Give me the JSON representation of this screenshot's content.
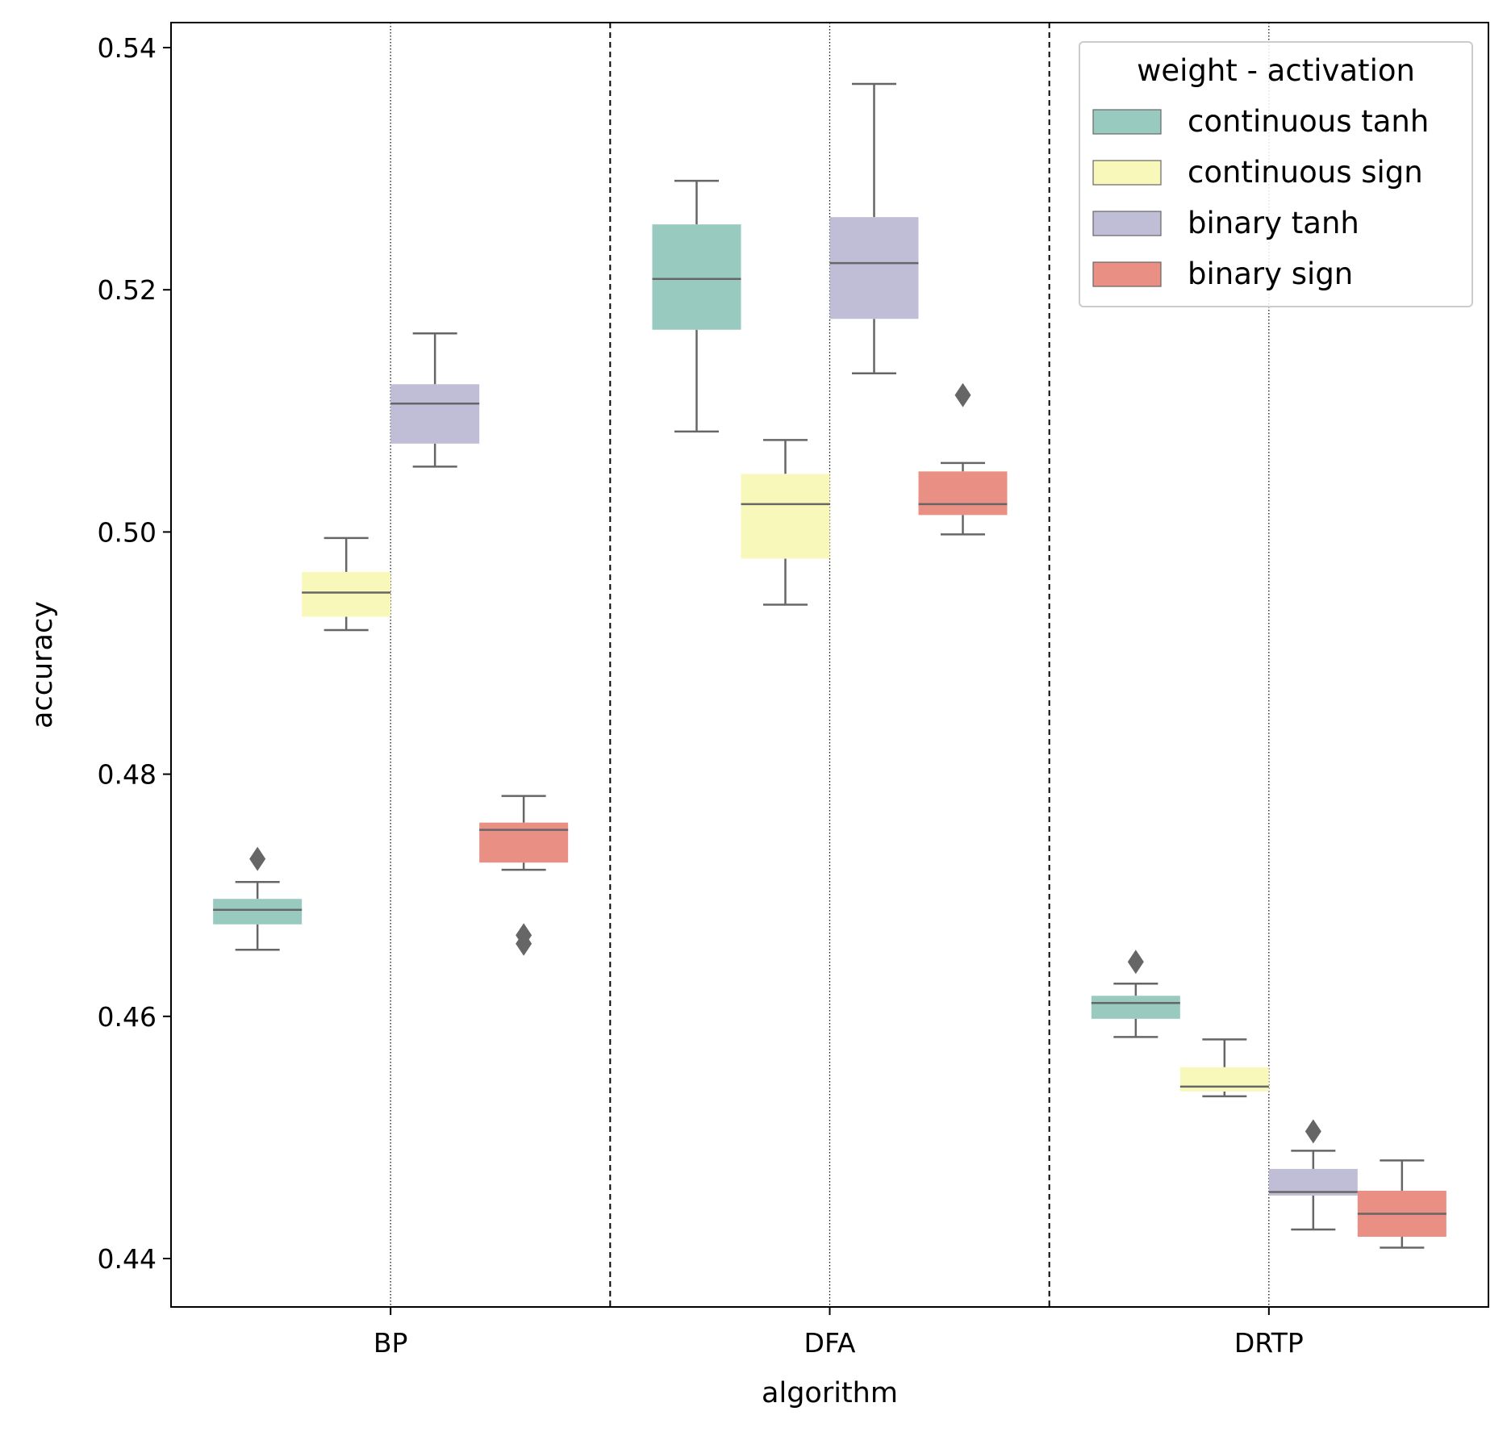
{
  "chart_data": {
    "type": "box",
    "xlabel": "algorithm",
    "ylabel": "accuracy",
    "categories": [
      "BP",
      "DFA",
      "DRTP"
    ],
    "ylim": [
      0.436,
      0.542
    ],
    "yticks": [
      0.44,
      0.46,
      0.48,
      0.5,
      0.52,
      0.54
    ],
    "ytick_labels": [
      "0.44",
      "0.46",
      "0.48",
      "0.50",
      "0.52",
      "0.54"
    ],
    "grid": false,
    "legend": {
      "title": "weight - activation",
      "placement": "top-right"
    },
    "series": [
      {
        "name": "continuous tanh",
        "color": "#99cac0",
        "boxes": [
          {
            "category": "BP",
            "whislo": 0.4655,
            "q1": 0.4676,
            "med": 0.4688,
            "q3": 0.4697,
            "whishi": 0.4711,
            "fliers": [
              0.473
            ]
          },
          {
            "category": "DFA",
            "whislo": 0.5083,
            "q1": 0.5167,
            "med": 0.5209,
            "q3": 0.5254,
            "whishi": 0.529,
            "fliers": []
          },
          {
            "category": "DRTP",
            "whislo": 0.4583,
            "q1": 0.4598,
            "med": 0.4611,
            "q3": 0.4617,
            "whishi": 0.4627,
            "fliers": [
              0.4645
            ]
          }
        ]
      },
      {
        "name": "continuous sign",
        "color": "#f8f8bb",
        "boxes": [
          {
            "category": "BP",
            "whislo": 0.4919,
            "q1": 0.493,
            "med": 0.495,
            "q3": 0.4967,
            "whishi": 0.4995,
            "fliers": []
          },
          {
            "category": "DFA",
            "whislo": 0.494,
            "q1": 0.4978,
            "med": 0.5023,
            "q3": 0.5048,
            "whishi": 0.5076,
            "fliers": []
          },
          {
            "category": "DRTP",
            "whislo": 0.4534,
            "q1": 0.4538,
            "med": 0.4542,
            "q3": 0.4558,
            "whishi": 0.4581,
            "fliers": []
          }
        ]
      },
      {
        "name": "binary tanh",
        "color": "#c0bdd6",
        "boxes": [
          {
            "category": "BP",
            "whislo": 0.5054,
            "q1": 0.5073,
            "med": 0.5106,
            "q3": 0.5122,
            "whishi": 0.5164,
            "fliers": []
          },
          {
            "category": "DFA",
            "whislo": 0.5131,
            "q1": 0.5176,
            "med": 0.5222,
            "q3": 0.526,
            "whishi": 0.537,
            "fliers": []
          },
          {
            "category": "DRTP",
            "whislo": 0.4424,
            "q1": 0.4452,
            "med": 0.4455,
            "q3": 0.4474,
            "whishi": 0.4489,
            "fliers": [
              0.4505
            ]
          }
        ]
      },
      {
        "name": "binary sign",
        "color": "#e98f83",
        "boxes": [
          {
            "category": "BP",
            "whislo": 0.4721,
            "q1": 0.4727,
            "med": 0.4754,
            "q3": 0.476,
            "whishi": 0.4782,
            "fliers": [
              0.4667,
              0.466
            ]
          },
          {
            "category": "DFA",
            "whislo": 0.4998,
            "q1": 0.5014,
            "med": 0.5023,
            "q3": 0.505,
            "whishi": 0.5057,
            "fliers": [
              0.5113
            ]
          },
          {
            "category": "DRTP",
            "whislo": 0.4409,
            "q1": 0.4418,
            "med": 0.4437,
            "q3": 0.4456,
            "whishi": 0.4481,
            "fliers": []
          }
        ]
      }
    ]
  }
}
